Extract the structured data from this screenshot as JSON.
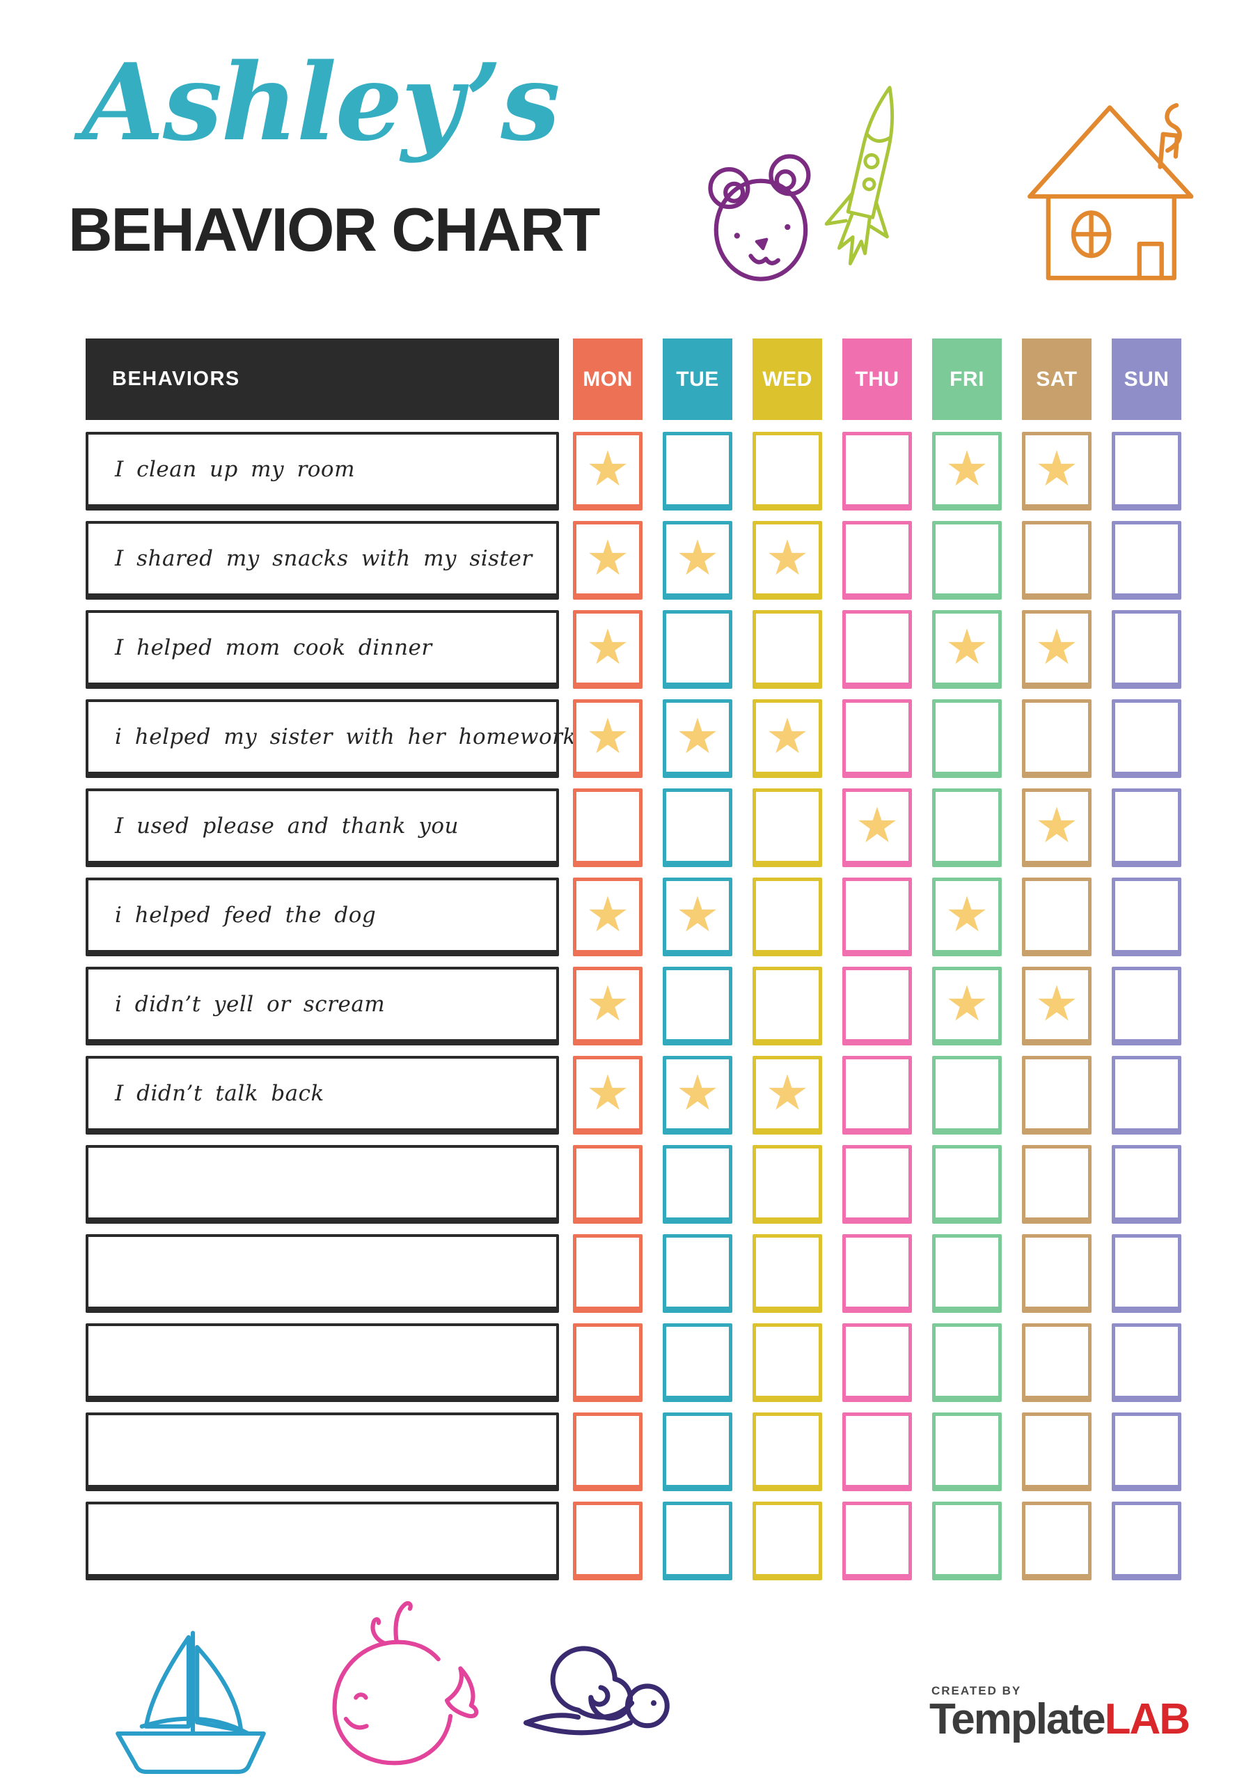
{
  "title": {
    "name": "Ashley’s",
    "name_color": "#35AEC2",
    "subtitle": "BEHAVIOR CHART",
    "subtitle_color": "#242424"
  },
  "table": {
    "behaviors_header": "BEHAVIORS",
    "header_bg": "#2B2B2B",
    "days": [
      {
        "label": "MON",
        "color": "#EC7155"
      },
      {
        "label": "TUE",
        "color": "#33A9BD"
      },
      {
        "label": "WED",
        "color": "#DCC22D"
      },
      {
        "label": "THU",
        "color": "#EF6FAF"
      },
      {
        "label": "FRI",
        "color": "#7DCA99"
      },
      {
        "label": "SAT",
        "color": "#C7A06B"
      },
      {
        "label": "SUN",
        "color": "#8F8EC9"
      }
    ],
    "rows": [
      {
        "label": "I clean up my room",
        "stars": [
          1,
          0,
          0,
          0,
          1,
          1,
          0
        ]
      },
      {
        "label": "I shared my snacks with my sister",
        "stars": [
          1,
          1,
          1,
          0,
          0,
          0,
          0
        ]
      },
      {
        "label": "I helped mom cook dinner",
        "stars": [
          1,
          0,
          0,
          0,
          1,
          1,
          0
        ]
      },
      {
        "label": "i helped my sister with her homework",
        "stars": [
          1,
          1,
          1,
          0,
          0,
          0,
          0
        ]
      },
      {
        "label": "I used please and thank you",
        "stars": [
          0,
          0,
          0,
          1,
          0,
          1,
          0
        ]
      },
      {
        "label": "i helped feed the dog",
        "stars": [
          1,
          1,
          0,
          0,
          1,
          0,
          0
        ]
      },
      {
        "label": "i didn’t yell or scream",
        "stars": [
          1,
          0,
          0,
          0,
          1,
          1,
          0
        ]
      },
      {
        "label": "I didn’t talk back",
        "stars": [
          1,
          1,
          1,
          0,
          0,
          0,
          0
        ]
      },
      {
        "label": "",
        "stars": [
          0,
          0,
          0,
          0,
          0,
          0,
          0
        ]
      },
      {
        "label": "",
        "stars": [
          0,
          0,
          0,
          0,
          0,
          0,
          0
        ]
      },
      {
        "label": "",
        "stars": [
          0,
          0,
          0,
          0,
          0,
          0,
          0
        ]
      },
      {
        "label": "",
        "stars": [
          0,
          0,
          0,
          0,
          0,
          0,
          0
        ]
      },
      {
        "label": "",
        "stars": [
          0,
          0,
          0,
          0,
          0,
          0,
          0
        ]
      }
    ]
  },
  "star": {
    "symbol": "★",
    "color": "#F8CE74"
  },
  "doodles": {
    "bear": "#7B2C82",
    "rocket": "#A9C63A",
    "house": "#E2882F",
    "sailboat": "#2B9DC9",
    "whale": "#E2439B",
    "snail": "#3A2B70"
  },
  "footer": {
    "created_by": "CREATED BY",
    "created_by_color": "#474747",
    "brand_primary": "Template",
    "brand_primary_color": "#3C3C3C",
    "brand_accent": "LAB",
    "brand_accent_color": "#D9272B"
  }
}
